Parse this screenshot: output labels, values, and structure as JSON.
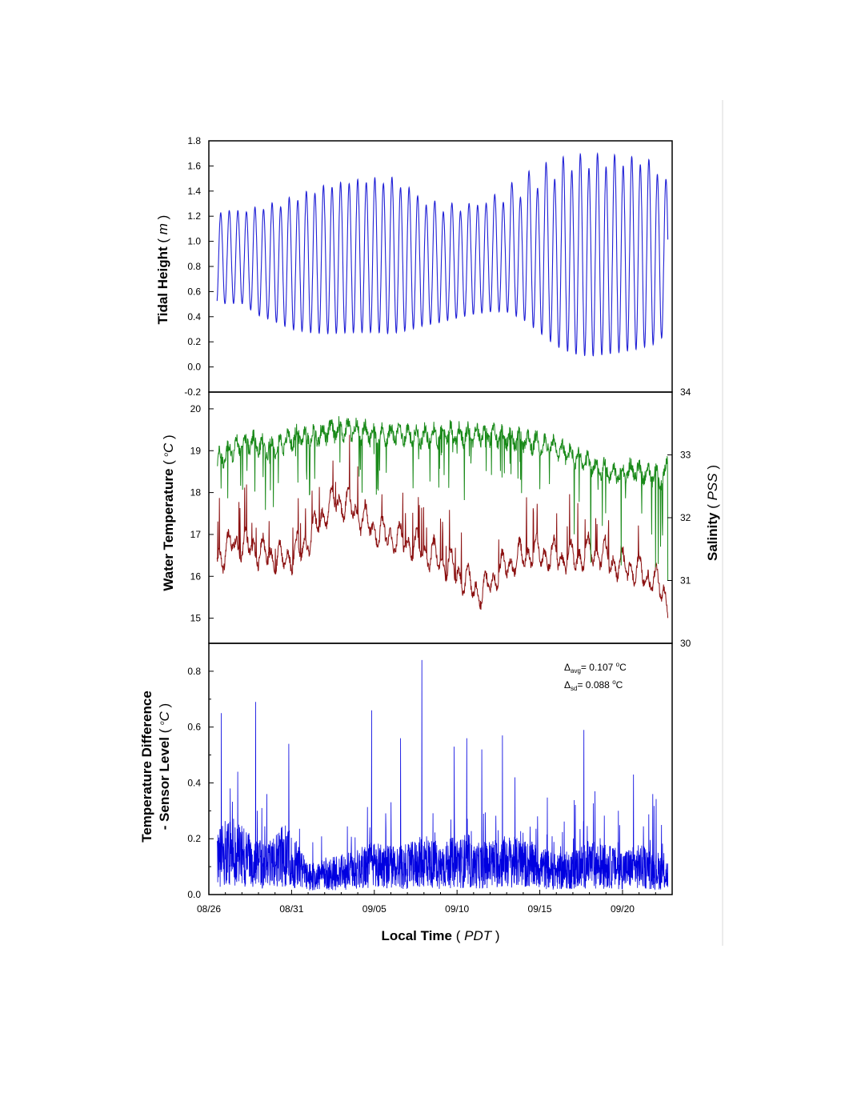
{
  "chart_data": [
    {
      "type": "line",
      "panel": "tidal-height",
      "ylabel": {
        "text": "Tidal Height",
        "unit": "m"
      },
      "ylim": [
        -0.2,
        1.8
      ],
      "yticks": [
        "-0.2",
        "0.0",
        "0.2",
        "0.4",
        "0.6",
        "0.8",
        "1.0",
        "1.2",
        "1.4",
        "1.6",
        "1.8"
      ],
      "xlim": [
        "08/26",
        "09/23"
      ],
      "color": "#1f1fd6",
      "series": [
        {
          "x": [
            "08/26 12:00",
            "08/27 00:00",
            "08/28 00:00",
            "08/29 00:00",
            "08/30 00:00",
            "08/31 00:00",
            "09/01 00:00",
            "09/02 00:00",
            "09/03 00:00",
            "09/04 00:00",
            "09/05 00:00",
            "09/06 00:00",
            "09/07 00:00",
            "09/08 00:00",
            "09/09 00:00",
            "09/10 00:00",
            "09/11 00:00",
            "09/12 00:00",
            "09/13 00:00",
            "09/14 00:00",
            "09/15 00:00",
            "09/16 00:00",
            "09/17 00:00",
            "09/18 00:00",
            "09/19 00:00",
            "09/20 00:00",
            "09/21 00:00",
            "09/22 00:00",
            "09/22 18:00"
          ],
          "high_high": [
            1.52,
            1.5,
            1.49,
            1.48,
            1.47,
            1.5,
            1.54,
            1.58,
            1.59,
            1.58,
            1.55,
            1.52,
            1.5,
            1.5,
            1.55,
            1.58,
            1.6,
            1.6,
            1.59,
            1.59,
            1.62,
            1.66,
            1.7,
            1.68,
            1.66,
            1.66,
            1.68,
            1.67,
            1.3
          ],
          "low_high": [
            1.0,
            0.97,
            0.99,
            1.05,
            1.1,
            1.16,
            1.22,
            1.28,
            1.33,
            1.38,
            1.42,
            1.45,
            1.35,
            1.13,
            1.0,
            0.95,
            0.97,
            1.05,
            1.16,
            1.3,
            1.42,
            1.5,
            1.56,
            1.6,
            1.63,
            1.62,
            1.6,
            1.55,
            1.4
          ],
          "high_low": [
            0.69,
            0.74,
            0.78,
            0.65,
            0.6,
            0.52,
            0.48,
            0.45,
            0.42,
            0.4,
            0.38,
            0.36,
            0.4,
            0.48,
            0.55,
            0.64,
            0.7,
            0.76,
            0.78,
            0.7,
            0.55,
            0.4,
            0.3,
            0.24,
            0.22,
            0.22,
            0.24,
            0.3,
            0.46
          ],
          "low_low": [
            0.28,
            0.27,
            0.23,
            0.17,
            0.12,
            0.08,
            0.07,
            0.08,
            0.12,
            0.15,
            0.17,
            0.17,
            0.18,
            0.18,
            0.16,
            0.14,
            0.14,
            0.12,
            0.1,
            0.06,
            0.0,
            -0.07,
            -0.09,
            -0.07,
            -0.02,
            0.02,
            0.05,
            0.07,
            0.1
          ]
        }
      ]
    },
    {
      "type": "line",
      "panel": "water-temperature-salinity",
      "ylabel": {
        "text": "Water Temperature",
        "unit": "oC"
      },
      "ylabel_right": {
        "text": "Salinity",
        "unit": "PSS"
      },
      "ylim": [
        14.4,
        20.4
      ],
      "yticks": [
        "15",
        "16",
        "17",
        "18",
        "19",
        "20"
      ],
      "ylim_right": [
        30,
        34
      ],
      "yticks_right": [
        "30",
        "31",
        "32",
        "33",
        "34"
      ],
      "xlim": [
        "08/26",
        "09/23"
      ],
      "series": [
        {
          "name": "",
          "axis": "left",
          "color": "#8b1010",
          "x": [
            "08/26 12:00",
            "08/27 12:00",
            "08/28 12:00",
            "08/29 12:00",
            "08/30 12:00",
            "08/31 12:00",
            "09/01 12:00",
            "09/02 12:00",
            "09/03 12:00",
            "09/04 12:00",
            "09/05 12:00",
            "09/06 12:00",
            "09/07 12:00",
            "09/08 12:00",
            "09/09 12:00",
            "09/10 12:00",
            "09/11 12:00",
            "09/12 12:00",
            "09/13 12:00",
            "09/14 12:00",
            "09/15 12:00",
            "09/16 12:00",
            "09/17 12:00",
            "09/18 12:00",
            "09/19 12:00",
            "09/20 12:00",
            "09/21 12:00",
            "09/22 12:00",
            "09/22 18:00"
          ],
          "values": [
            16.4,
            16.8,
            16.7,
            16.5,
            16.4,
            16.6,
            17.2,
            17.8,
            17.7,
            17.3,
            17.0,
            16.9,
            16.7,
            16.5,
            16.3,
            15.9,
            15.6,
            16.1,
            16.4,
            16.6,
            16.5,
            16.4,
            16.5,
            16.6,
            16.3,
            16.2,
            16.0,
            15.7,
            15.2
          ]
        },
        {
          "name": "",
          "axis": "right",
          "color": "#1a8a1a",
          "x": [
            "08/26 12:00",
            "08/27 12:00",
            "08/28 12:00",
            "08/29 12:00",
            "08/30 12:00",
            "08/31 12:00",
            "09/01 12:00",
            "09/02 12:00",
            "09/03 12:00",
            "09/04 12:00",
            "09/05 12:00",
            "09/06 12:00",
            "09/07 12:00",
            "09/08 12:00",
            "09/09 12:00",
            "09/10 12:00",
            "09/11 12:00",
            "09/12 12:00",
            "09/13 12:00",
            "09/14 12:00",
            "09/15 12:00",
            "09/16 12:00",
            "09/17 12:00",
            "09/18 12:00",
            "09/19 12:00",
            "09/20 12:00",
            "09/21 12:00",
            "09/22 12:00",
            "09/22 18:00"
          ],
          "values": [
            32.9,
            33.1,
            33.2,
            33.1,
            33.2,
            33.3,
            33.3,
            33.4,
            33.4,
            33.35,
            33.3,
            33.35,
            33.3,
            33.3,
            33.35,
            33.3,
            33.35,
            33.3,
            33.25,
            33.2,
            33.15,
            33.05,
            32.9,
            32.8,
            32.7,
            32.75,
            32.7,
            32.6,
            33.0
          ]
        }
      ]
    },
    {
      "type": "line",
      "panel": "temperature-difference",
      "ylabel": {
        "line1": "Temperature Difference",
        "line2": "- Sensor Level",
        "unit": "oC"
      },
      "ylim": [
        0,
        0.9
      ],
      "yticks": [
        "0.0",
        "0.2",
        "0.4",
        "0.6",
        "0.8"
      ],
      "xlabel": {
        "text": "Local Time",
        "unit": "PDT"
      },
      "xlim": [
        "08/26",
        "09/23"
      ],
      "xticks": [
        "08/26",
        "08/31",
        "09/05",
        "09/10",
        "09/15",
        "09/20"
      ],
      "color": "#0000e0",
      "annotations": [
        {
          "symbol": "Δ",
          "subscript": "avg",
          "text": "= 0.107",
          "unit_sup": "o",
          "unit": "C"
        },
        {
          "symbol": "Δ",
          "subscript": "sd",
          "text": "= 0.088",
          "unit_sup": "o",
          "unit": "C"
        }
      ],
      "series": [
        {
          "x": [
            "08/26 12:00",
            "08/27 00:00",
            "08/27 12:00",
            "08/28 00:00",
            "08/28 12:00",
            "08/29 00:00",
            "08/29 12:00",
            "08/30 00:00",
            "08/30 12:00",
            "08/31 00:00",
            "09/01 00:00",
            "09/02 00:00",
            "09/03 00:00",
            "09/04 00:00",
            "09/05 00:00",
            "09/06 00:00",
            "09/07 00:00",
            "09/08 00:00",
            "09/09 00:00",
            "09/10 00:00",
            "09/11 00:00",
            "09/12 00:00",
            "09/13 00:00",
            "09/14 00:00",
            "09/15 00:00",
            "09/16 00:00",
            "09/17 00:00",
            "09/18 00:00",
            "09/19 00:00",
            "09/20 00:00",
            "09/21 00:00",
            "09/22 00:00",
            "09/22 18:00"
          ],
          "baseline": [
            0.12,
            0.15,
            0.14,
            0.14,
            0.12,
            0.11,
            0.1,
            0.12,
            0.14,
            0.13,
            0.06,
            0.07,
            0.08,
            0.09,
            0.11,
            0.1,
            0.1,
            0.12,
            0.1,
            0.12,
            0.1,
            0.11,
            0.12,
            0.11,
            0.1,
            0.08,
            0.09,
            0.11,
            0.1,
            0.09,
            0.1,
            0.09,
            0.07
          ],
          "peaks": [
            {
              "x": "08/26 18:00",
              "y": 0.65
            },
            {
              "x": "08/27 07:00",
              "y": 0.38
            },
            {
              "x": "08/27 18:00",
              "y": 0.44
            },
            {
              "x": "08/28 20:00",
              "y": 0.69
            },
            {
              "x": "08/29 12:00",
              "y": 0.36
            },
            {
              "x": "08/30 20:00",
              "y": 0.54
            },
            {
              "x": "09/04 20:00",
              "y": 0.66
            },
            {
              "x": "09/06 14:00",
              "y": 0.56
            },
            {
              "x": "09/07 21:00",
              "y": 0.84
            },
            {
              "x": "09/09 20:00",
              "y": 0.53
            },
            {
              "x": "09/10 14:00",
              "y": 0.56
            },
            {
              "x": "09/11 12:00",
              "y": 0.52
            },
            {
              "x": "09/12 18:00",
              "y": 0.57
            },
            {
              "x": "09/13 12:00",
              "y": 0.42
            },
            {
              "x": "09/17 16:00",
              "y": 0.59
            },
            {
              "x": "09/18 08:00",
              "y": 0.37
            },
            {
              "x": "09/19 18:00",
              "y": 0.3
            },
            {
              "x": "09/20 16:00",
              "y": 0.43
            },
            {
              "x": "09/21 20:00",
              "y": 0.36
            }
          ]
        }
      ]
    }
  ]
}
